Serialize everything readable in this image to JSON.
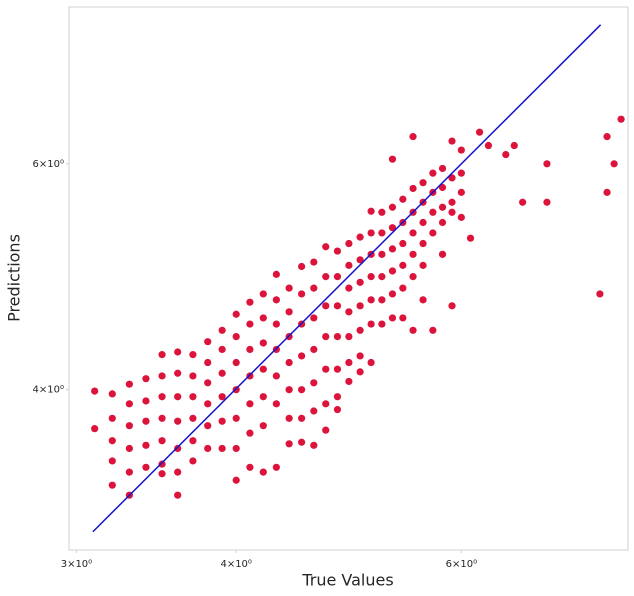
{
  "chart_data": {
    "type": "scatter",
    "x_label": "True Values",
    "y_label": "Predictions",
    "log_x": true,
    "log_y": true,
    "grid": false,
    "color": "#dc143c",
    "xlim": [
      2.96,
      8.1
    ],
    "ylim": [
      3.0,
      7.95
    ],
    "xticks": [
      {
        "value": 3,
        "label": "3×10⁰"
      },
      {
        "value": 4,
        "label": "4×10⁰"
      },
      {
        "value": 6,
        "label": "6×10⁰"
      }
    ],
    "yticks": [
      {
        "value": 4,
        "label": "4×10⁰"
      },
      {
        "value": 6,
        "label": "6×10⁰"
      }
    ],
    "reference_line": {
      "x": [
        3.09,
        7.71
      ],
      "y": [
        3.1,
        7.7
      ],
      "color": "#1414c8"
    },
    "x": [
      3.1,
      3.1,
      3.2,
      3.2,
      3.2,
      3.2,
      3.2,
      3.3,
      3.3,
      3.3,
      3.3,
      3.3,
      3.3,
      3.4,
      3.4,
      3.4,
      3.4,
      3.4,
      3.5,
      3.5,
      3.5,
      3.5,
      3.5,
      3.5,
      3.5,
      3.6,
      3.6,
      3.6,
      3.6,
      3.6,
      3.6,
      3.6,
      3.7,
      3.7,
      3.7,
      3.7,
      3.7,
      3.7,
      3.8,
      3.8,
      3.8,
      3.8,
      3.8,
      3.8,
      3.9,
      3.9,
      3.9,
      3.9,
      3.9,
      3.9,
      4.0,
      4.0,
      4.0,
      4.0,
      4.0,
      4.0,
      4.0,
      4.1,
      4.1,
      4.1,
      4.1,
      4.1,
      4.1,
      4.1,
      4.2,
      4.2,
      4.2,
      4.2,
      4.2,
      4.2,
      4.2,
      4.3,
      4.3,
      4.3,
      4.3,
      4.3,
      4.3,
      4.3,
      4.4,
      4.4,
      4.4,
      4.4,
      4.4,
      4.4,
      4.4,
      4.5,
      4.5,
      4.5,
      4.5,
      4.5,
      4.5,
      4.5,
      4.6,
      4.6,
      4.6,
      4.6,
      4.6,
      4.6,
      4.6,
      4.7,
      4.7,
      4.7,
      4.7,
      4.7,
      4.7,
      4.7,
      4.8,
      4.8,
      4.8,
      4.8,
      4.8,
      4.8,
      4.8,
      4.9,
      4.9,
      4.9,
      4.9,
      4.9,
      4.9,
      4.9,
      5.0,
      5.0,
      5.0,
      5.0,
      5.0,
      5.0,
      5.0,
      5.1,
      5.1,
      5.1,
      5.1,
      5.1,
      5.1,
      5.1,
      5.2,
      5.2,
      5.2,
      5.2,
      5.2,
      5.2,
      5.3,
      5.3,
      5.3,
      5.3,
      5.3,
      5.3,
      5.4,
      5.4,
      5.4,
      5.4,
      5.4,
      5.4,
      5.5,
      5.5,
      5.5,
      5.5,
      5.5,
      5.5,
      5.6,
      5.6,
      5.6,
      5.6,
      5.6,
      5.6,
      5.7,
      5.7,
      5.7,
      5.7,
      5.7,
      5.8,
      5.8,
      5.8,
      5.8,
      5.8,
      5.9,
      5.9,
      5.9,
      5.9,
      5.9,
      6.0,
      6.0,
      6.0,
      6.0,
      5.3,
      5.5,
      6.2,
      6.3,
      6.5,
      6.7,
      7.0,
      7.0,
      7.7,
      7.8,
      8.0,
      7.8,
      7.9,
      6.1,
      6.6
    ],
    "values": [
      3.99,
      3.73,
      3.97,
      3.8,
      3.65,
      3.52,
      3.37,
      4.04,
      3.9,
      3.75,
      3.6,
      3.45,
      3.31,
      4.08,
      3.92,
      3.78,
      3.62,
      3.48,
      4.26,
      4.1,
      3.95,
      3.8,
      3.65,
      3.5,
      3.44,
      4.28,
      4.12,
      3.95,
      3.78,
      3.6,
      3.45,
      3.31,
      4.26,
      4.1,
      3.95,
      3.8,
      3.65,
      3.52,
      4.36,
      4.2,
      4.05,
      3.9,
      3.75,
      3.6,
      4.45,
      4.3,
      4.12,
      3.95,
      3.78,
      3.6,
      4.58,
      4.4,
      4.2,
      4.0,
      3.8,
      3.6,
      3.4,
      4.68,
      4.5,
      4.3,
      4.1,
      3.9,
      3.7,
      3.48,
      4.75,
      4.55,
      4.35,
      4.15,
      3.95,
      3.75,
      3.45,
      4.92,
      4.7,
      4.5,
      4.3,
      4.1,
      3.9,
      3.48,
      4.8,
      4.6,
      4.4,
      4.2,
      4.0,
      3.8,
      3.63,
      4.99,
      4.75,
      4.5,
      4.25,
      4.0,
      3.8,
      3.64,
      5.03,
      4.8,
      4.55,
      4.3,
      4.05,
      3.85,
      3.62,
      5.17,
      4.9,
      4.65,
      4.4,
      4.15,
      3.9,
      3.72,
      5.13,
      4.9,
      4.65,
      4.4,
      4.15,
      3.95,
      3.86,
      5.2,
      5.0,
      4.8,
      4.6,
      4.4,
      4.2,
      4.06,
      5.26,
      5.05,
      4.85,
      4.65,
      4.45,
      4.25,
      4.13,
      5.51,
      5.3,
      5.1,
      4.9,
      4.7,
      4.5,
      4.2,
      5.5,
      5.3,
      5.1,
      4.9,
      4.7,
      4.5,
      5.55,
      5.35,
      5.15,
      4.95,
      4.75,
      4.55,
      5.63,
      5.4,
      5.2,
      5.0,
      4.8,
      4.55,
      5.74,
      5.5,
      5.3,
      5.1,
      4.9,
      4.45,
      5.8,
      5.6,
      5.4,
      5.2,
      5.0,
      4.7,
      5.9,
      5.7,
      5.5,
      5.3,
      4.45,
      5.95,
      5.75,
      5.55,
      5.4,
      5.1,
      6.25,
      5.85,
      5.6,
      5.5,
      4.65,
      6.15,
      5.9,
      5.7,
      5.45,
      6.05,
      6.3,
      6.35,
      6.2,
      6.1,
      5.6,
      6.0,
      5.6,
      4.75,
      6.3,
      6.5,
      5.7,
      6.0,
      5.25,
      6.2
    ]
  }
}
